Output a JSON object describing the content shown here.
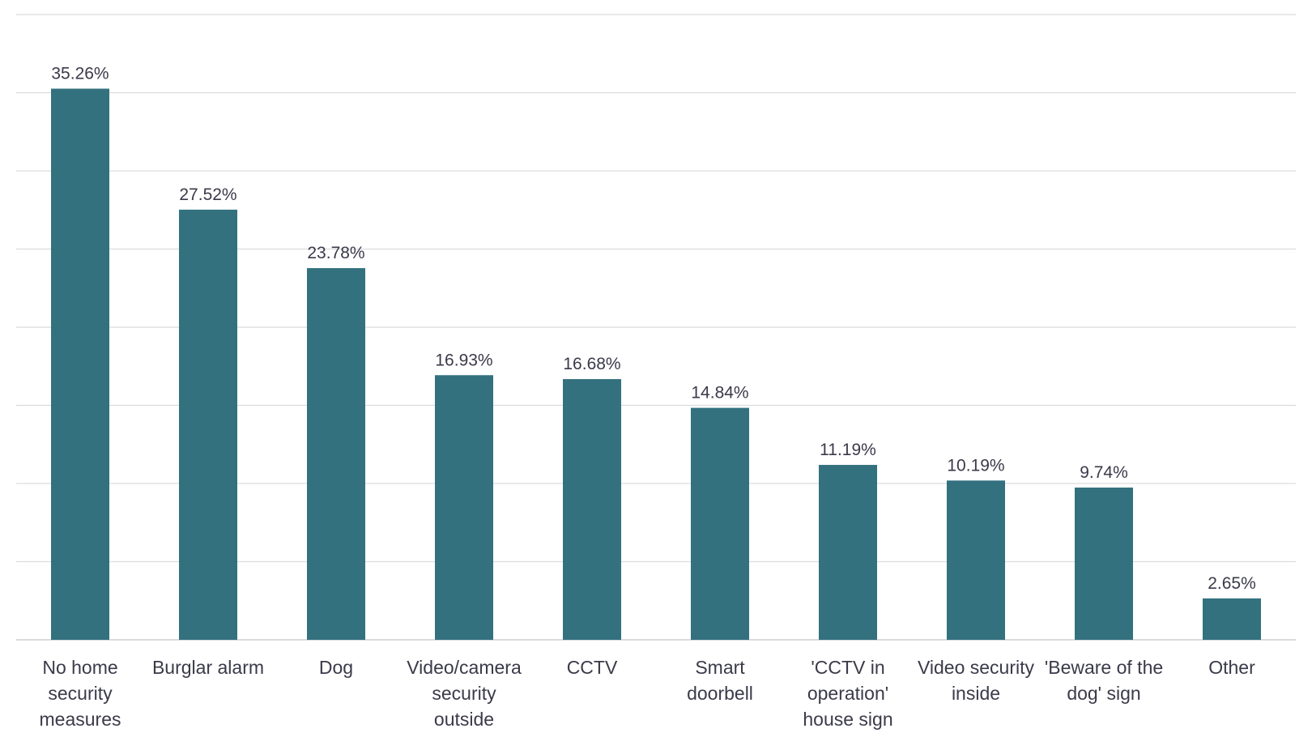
{
  "chart_data": {
    "type": "bar",
    "categories": [
      "No home security measures",
      "Burglar alarm",
      "Dog",
      "Video/camera security outside",
      "CCTV",
      "Smart doorbell",
      "'CCTV in operation' house sign",
      "Video security inside",
      "'Beware of the dog' sign",
      "Other"
    ],
    "category_lines": [
      [
        "No home",
        "security",
        "measures"
      ],
      [
        "Burglar alarm"
      ],
      [
        "Dog"
      ],
      [
        "Video/camera",
        "security",
        "outside"
      ],
      [
        "CCTV"
      ],
      [
        "Smart",
        "doorbell"
      ],
      [
        "'CCTV in",
        "operation'",
        "house sign"
      ],
      [
        "Video security",
        "inside"
      ],
      [
        "'Beware of the",
        "dog' sign"
      ],
      [
        "Other"
      ]
    ],
    "values": [
      35.26,
      27.52,
      23.78,
      16.93,
      16.68,
      14.84,
      11.19,
      10.19,
      9.74,
      2.65
    ],
    "value_labels": [
      "35.26%",
      "27.52%",
      "23.78%",
      "16.93%",
      "16.68%",
      "14.84%",
      "11.19%",
      "10.19%",
      "9.74%",
      "2.65%"
    ],
    "title": "",
    "xlabel": "",
    "ylabel": "",
    "ylim": [
      0,
      40
    ],
    "grid": true,
    "grid_step": 5,
    "bar_color": "#33717f"
  }
}
